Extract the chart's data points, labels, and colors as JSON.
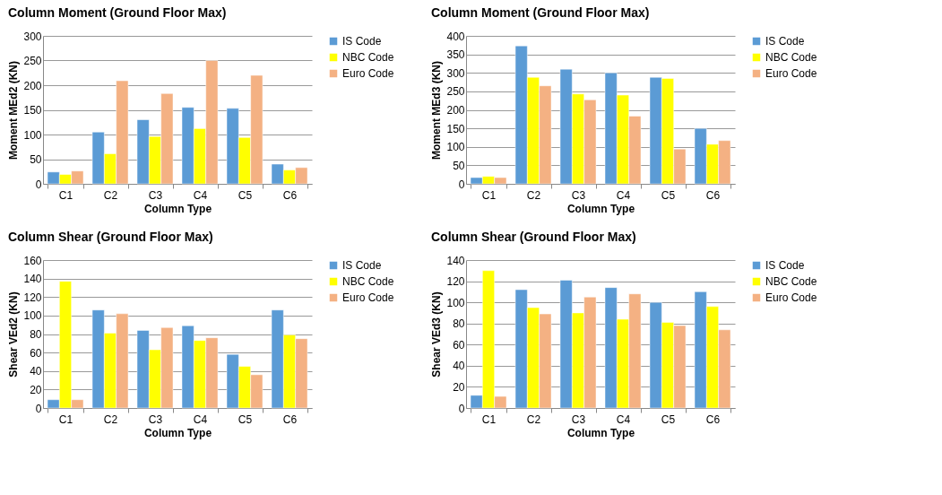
{
  "chart_data": [
    {
      "type": "bar",
      "title": "Column Moment (Ground Floor Max)",
      "xlabel": "Column Type",
      "ylabel": "Moment MEd2 (KN)",
      "categories": [
        "C1",
        "C2",
        "C3",
        "C4",
        "C5",
        "C6"
      ],
      "ylim": [
        0,
        300
      ],
      "yticks": [
        0,
        50,
        100,
        150,
        200,
        250,
        300
      ],
      "grid": "y",
      "legend": "right",
      "series": [
        {
          "name": "IS Code",
          "color": "#5b9bd5",
          "values": [
            24,
            105,
            130,
            155,
            153,
            40
          ]
        },
        {
          "name": "NBC Code",
          "color": "#ffff00",
          "values": [
            19,
            61,
            96,
            112,
            94,
            28
          ]
        },
        {
          "name": "Euro Code",
          "color": "#f4b183",
          "values": [
            26,
            209,
            183,
            250,
            220,
            33
          ]
        }
      ]
    },
    {
      "type": "bar",
      "title": "Column Moment (Ground Floor Max)",
      "xlabel": "Column Type",
      "ylabel": "Moment MEd3 (KN)",
      "categories": [
        "C1",
        "C2",
        "C3",
        "C4",
        "C5",
        "C6"
      ],
      "ylim": [
        0,
        400
      ],
      "yticks": [
        0,
        50,
        100,
        150,
        200,
        250,
        300,
        350,
        400
      ],
      "grid": "y",
      "legend": "right",
      "series": [
        {
          "name": "IS Code",
          "color": "#5b9bd5",
          "values": [
            17,
            373,
            310,
            300,
            288,
            150
          ]
        },
        {
          "name": "NBC Code",
          "color": "#ffff00",
          "values": [
            20,
            288,
            243,
            240,
            285,
            107
          ]
        },
        {
          "name": "Euro Code",
          "color": "#f4b183",
          "values": [
            17,
            265,
            227,
            183,
            94,
            117
          ]
        }
      ]
    },
    {
      "type": "bar",
      "title": "Column Shear (Ground Floor Max)",
      "xlabel": "Column Type",
      "ylabel": "Shear VEd2 (KN)",
      "categories": [
        "C1",
        "C2",
        "C3",
        "C4",
        "C5",
        "C6"
      ],
      "ylim": [
        0,
        160
      ],
      "yticks": [
        0,
        20,
        40,
        60,
        80,
        100,
        120,
        140,
        160
      ],
      "grid": "y",
      "legend": "right",
      "series": [
        {
          "name": "IS Code",
          "color": "#5b9bd5",
          "values": [
            9,
            106,
            84,
            89,
            58,
            106
          ]
        },
        {
          "name": "NBC Code",
          "color": "#ffff00",
          "values": [
            137,
            81,
            63,
            73,
            45,
            79
          ]
        },
        {
          "name": "Euro Code",
          "color": "#f4b183",
          "values": [
            9,
            102,
            87,
            76,
            36,
            75
          ]
        }
      ]
    },
    {
      "type": "bar",
      "title": "Column Shear (Ground Floor Max)",
      "xlabel": "Column Type",
      "ylabel": "Shear VEd3 (KN)",
      "categories": [
        "C1",
        "C2",
        "C3",
        "C4",
        "C5",
        "C6"
      ],
      "ylim": [
        0,
        140
      ],
      "yticks": [
        0,
        20,
        40,
        60,
        80,
        100,
        120,
        140
      ],
      "grid": "y",
      "legend": "right",
      "series": [
        {
          "name": "IS Code",
          "color": "#5b9bd5",
          "values": [
            12,
            112,
            121,
            114,
            100,
            110
          ]
        },
        {
          "name": "NBC Code",
          "color": "#ffff00",
          "values": [
            130,
            95,
            90,
            84,
            81,
            96
          ]
        },
        {
          "name": "Euro Code",
          "color": "#f4b183",
          "values": [
            11,
            89,
            105,
            108,
            78,
            74
          ]
        }
      ]
    }
  ]
}
